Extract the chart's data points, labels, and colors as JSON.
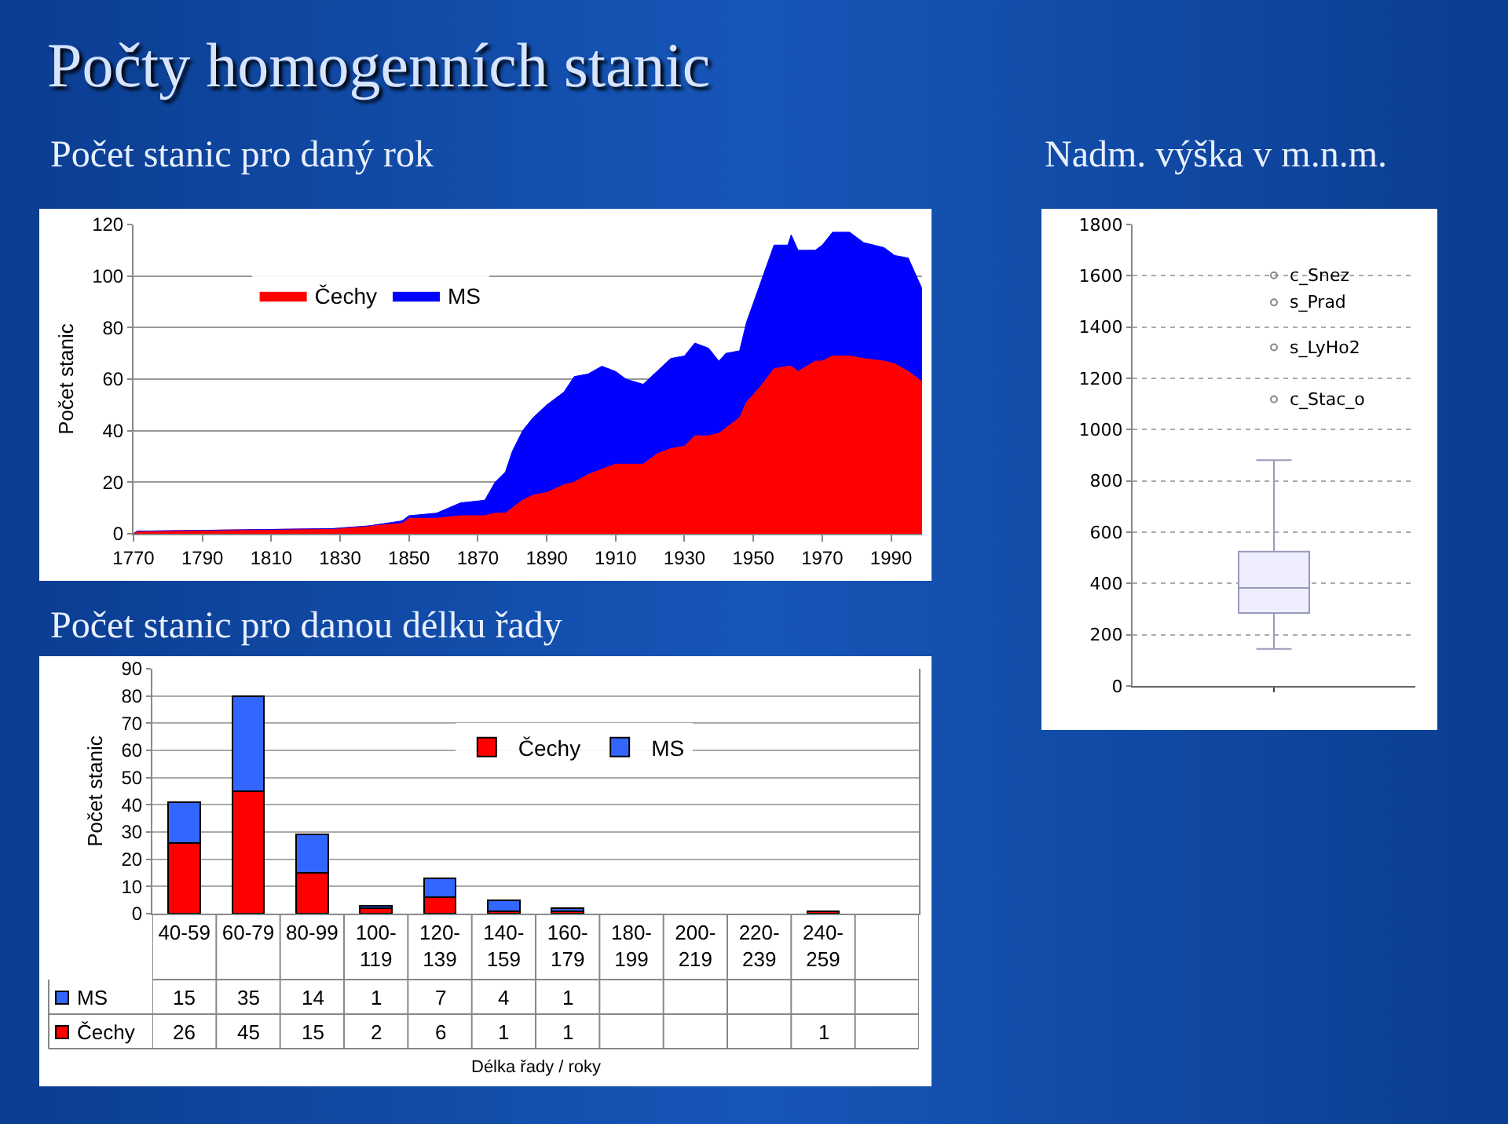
{
  "chart_data": [
    {
      "type": "area",
      "title": "Počty homogenních stanic",
      "subtitle": "Počet stanic pro daný rok",
      "ylabel": "Počet stanic",
      "stacked": true,
      "x": [
        1770,
        1771,
        1828,
        1838,
        1848,
        1850,
        1858,
        1865,
        1872,
        1875,
        1878,
        1880,
        1883,
        1886,
        1890,
        1895,
        1898,
        1902,
        1906,
        1910,
        1913,
        1918,
        1922,
        1926,
        1930,
        1933,
        1937,
        1940,
        1942,
        1946,
        1948,
        1952,
        1956,
        1960,
        1961,
        1963,
        1968,
        1970,
        1973,
        1978,
        1982,
        1988,
        1991,
        1995,
        1999
      ],
      "series": [
        {
          "name": "Čechy",
          "color": "#ff0000",
          "values": [
            0,
            1,
            2,
            3,
            4,
            6,
            6,
            7,
            7,
            8,
            8,
            10,
            13,
            15,
            16,
            19,
            20,
            23,
            25,
            27,
            27,
            27,
            31,
            33,
            34,
            38,
            38,
            39,
            41,
            45,
            51,
            57,
            64,
            65,
            65,
            63,
            67,
            67,
            69,
            69,
            68,
            67,
            66,
            63,
            59
          ]
        },
        {
          "name": "MS",
          "color": "#0000ff",
          "values": [
            0,
            0,
            0,
            0,
            1,
            1,
            2,
            5,
            6,
            12,
            16,
            22,
            27,
            30,
            34,
            36,
            41,
            39,
            40,
            36,
            33,
            31,
            32,
            35,
            35,
            36,
            34,
            28,
            29,
            26,
            31,
            40,
            48,
            47,
            51,
            47,
            43,
            45,
            48,
            48,
            45,
            44,
            42,
            44,
            36
          ]
        }
      ],
      "xlim": [
        1770,
        1999
      ],
      "xticks": [
        1770,
        1790,
        1810,
        1830,
        1850,
        1870,
        1890,
        1910,
        1930,
        1950,
        1970,
        1990
      ],
      "ylim": [
        0,
        120
      ],
      "yticks": [
        0,
        20,
        40,
        60,
        80,
        100,
        120
      ],
      "grid": "y",
      "legend": "top left"
    },
    {
      "type": "box",
      "title": "Nadm. výška v m.n.m.",
      "categories": [
        null
      ],
      "boxes": [
        {
          "low": 145,
          "q1": 285,
          "median": 383,
          "q3": 524,
          "high": 881,
          "outliers": [
            1602,
            1496,
            1321,
            1118
          ]
        }
      ],
      "annotations": [
        "c_Snez",
        "s_Prad",
        "s_LyHo2",
        "c_Stac_o"
      ],
      "ylim": [
        0,
        1800
      ],
      "yticks": [
        0,
        200,
        400,
        600,
        800,
        1000,
        1200,
        1400,
        1600,
        1800
      ],
      "grid": "y",
      "tick_labels": "y"
    },
    {
      "type": "bar",
      "title": "Počet stanic pro danou délku řady",
      "ylabel": "Počet stanic",
      "xlabel": "Délka řady / roky",
      "stacked": true,
      "categories": [
        "40-59",
        "60-79",
        "80-99",
        "100-119",
        "120-139",
        "140-159",
        "160-179",
        "180-199",
        "200-219",
        "220-239",
        "240-259",
        null
      ],
      "series": [
        {
          "name": "Čechy",
          "color": "#ff0000",
          "values": [
            26,
            45,
            15,
            2,
            6,
            1,
            1,
            null,
            null,
            null,
            1,
            null
          ]
        },
        {
          "name": "MS",
          "color": "#3366ff",
          "values": [
            15,
            35,
            14,
            1,
            7,
            4,
            1,
            null,
            null,
            null,
            null,
            null
          ]
        }
      ],
      "ylim": [
        0,
        90
      ],
      "yticks": [
        0,
        10,
        20,
        30,
        40,
        50,
        60,
        70,
        80,
        90
      ],
      "grid": "y",
      "legend": "top",
      "data_labels": true
    }
  ]
}
